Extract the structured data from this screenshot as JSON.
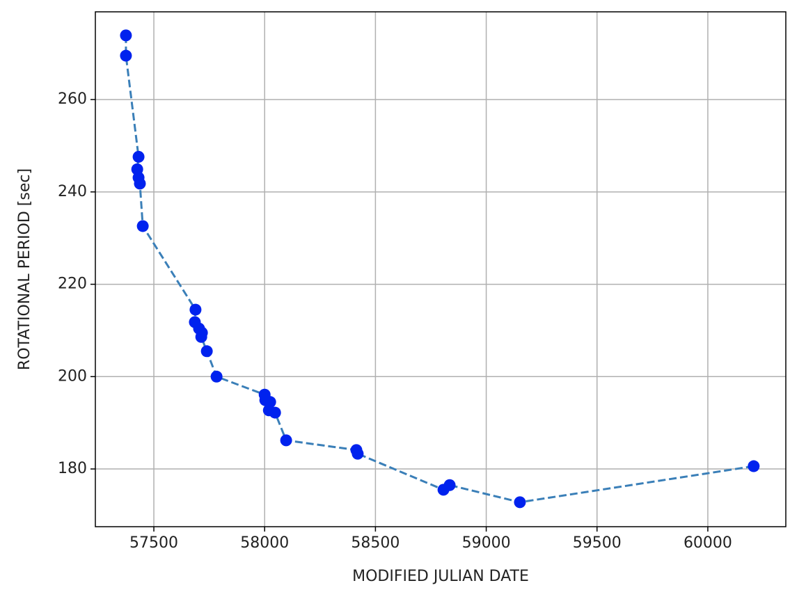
{
  "chart_data": {
    "type": "line",
    "x_label": "MODIFIED JULIAN DATE",
    "y_label": "ROTATIONAL PERIOD [sec]",
    "series": [
      {
        "color": "#3a7fb8",
        "marker_color": "#0022ee",
        "line_style": "dashed",
        "x": [
          57374,
          57374,
          57431,
          57425,
          57431,
          57437,
          57450,
          57688,
          57685,
          57704,
          57717,
          57714,
          57739,
          57783,
          58000,
          58003,
          58025,
          58019,
          58047,
          58097,
          58414,
          58420,
          58807,
          58835,
          59152,
          60207
        ],
        "values": [
          273.9,
          269.5,
          247.6,
          244.9,
          243.1,
          241.8,
          232.6,
          214.5,
          211.8,
          210.4,
          209.5,
          208.6,
          205.5,
          200.0,
          196.1,
          194.9,
          194.5,
          192.7,
          192.2,
          186.2,
          184.1,
          183.3,
          175.5,
          176.5,
          172.8,
          180.6
        ]
      }
    ],
    "xlim": [
      57236,
      60352
    ],
    "xticks": [
      57500,
      58000,
      58500,
      59000,
      59500,
      60000
    ],
    "ylim": [
      167.5,
      279
    ],
    "yticks": [
      180,
      200,
      220,
      240,
      260
    ],
    "grid": true
  }
}
